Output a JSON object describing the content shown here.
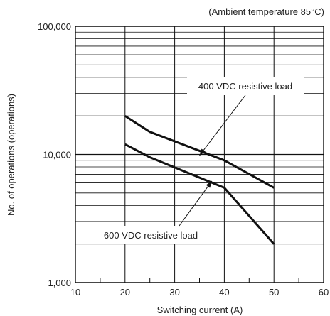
{
  "chart_data": {
    "type": "line",
    "title": "",
    "annotation_top_right": "(Ambient temperature 85°C)",
    "xlabel": "Switching current (A)",
    "ylabel": "No. of operations (operations)",
    "x_ticks": [
      10,
      20,
      30,
      40,
      50,
      60
    ],
    "y_ticks": [
      {
        "value": 1000,
        "label": "1,000"
      },
      {
        "value": 10000,
        "label": "10,000"
      },
      {
        "value": 100000,
        "label": "100,000"
      }
    ],
    "xlim": [
      10,
      60
    ],
    "ylim": [
      1000,
      100000
    ],
    "yscale": "log",
    "grid": true,
    "series": [
      {
        "name": "400 VDC resistive load",
        "x": [
          20,
          25,
          40,
          50
        ],
        "y": [
          20000,
          15000,
          9000,
          5500
        ]
      },
      {
        "name": "600 VDC resistive load",
        "x": [
          20,
          25,
          40,
          50
        ],
        "y": [
          12000,
          9500,
          5500,
          2000
        ]
      }
    ],
    "labels": [
      {
        "text": "400 VDC resistive load",
        "series": 0,
        "pointer_x": 35,
        "pointer_y": 9800
      },
      {
        "text": "600 VDC resistive load",
        "series": 1,
        "pointer_x": 37.5,
        "pointer_y": 6200
      }
    ],
    "colors": {
      "line": "#111111",
      "grid": "#111111",
      "text": "#222222"
    }
  }
}
